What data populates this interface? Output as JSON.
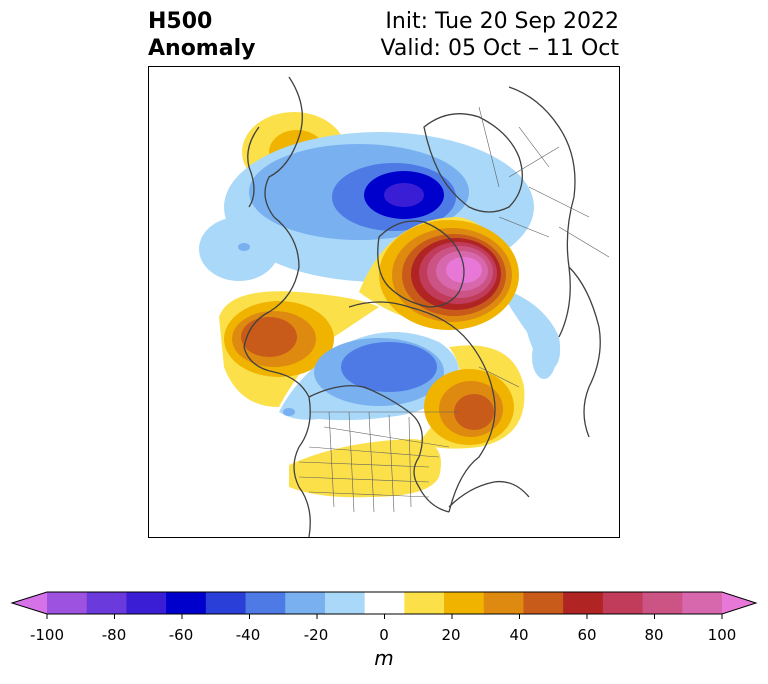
{
  "title": {
    "line1": "H500",
    "line2": "Anomaly"
  },
  "valid": {
    "init": "Init: Tue 20 Sep 2022",
    "range": "Valid: 05 Oct – 11 Oct"
  },
  "colorbar": {
    "unit": "m",
    "ticks": [
      "-100",
      "-80",
      "-60",
      "-40",
      "-20",
      "0",
      "20",
      "40",
      "60",
      "80",
      "100"
    ],
    "colors": [
      "#d672e8",
      "#9e52e0",
      "#6a3adc",
      "#3a1ed6",
      "#0000cc",
      "#2a3ed8",
      "#4e7ae6",
      "#78b0f0",
      "#aad8f8",
      "#ffffff",
      "#fbe04a",
      "#f0b400",
      "#de8a10",
      "#c85a1a",
      "#b02424",
      "#c03c5a",
      "#cc5484",
      "#d868ae",
      "#e878d8"
    ]
  }
}
